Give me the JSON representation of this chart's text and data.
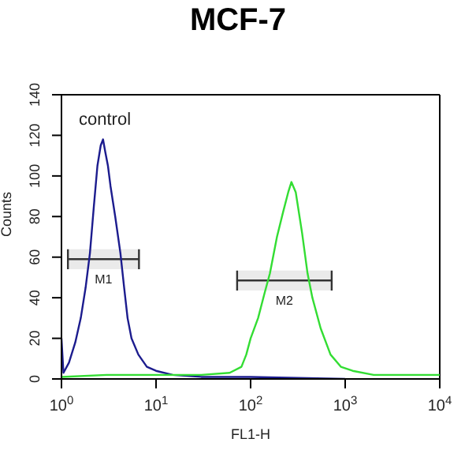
{
  "chart_data": {
    "type": "line",
    "title": "MCF-7",
    "xlabel": "FL1-H",
    "ylabel": "Counts",
    "log": "x",
    "xlim": [
      1,
      10000
    ],
    "xticks": [
      {
        "value": 1,
        "label": "10$^{0}$"
      },
      {
        "value": 10,
        "label": "10$^{1}$"
      },
      {
        "value": 100,
        "label": "10$^{2}$"
      },
      {
        "value": 1000,
        "label": "10$^{3}$"
      },
      {
        "value": 10000,
        "label": "10$^{4}$"
      }
    ],
    "ylim": [
      0,
      140
    ],
    "yticks": [
      0,
      20,
      40,
      60,
      80,
      100,
      120,
      140
    ],
    "grid": false,
    "legend": false,
    "marker": "none",
    "line_style": "solid",
    "series": [
      {
        "color": "#1c1c8e",
        "x": [
          1,
          1.05,
          1.2,
          1.4,
          1.6,
          1.8,
          2,
          2.2,
          2.4,
          2.6,
          2.75,
          2.9,
          3.1,
          3.3,
          3.7,
          4.2,
          4.6,
          5,
          5.5,
          6.5,
          8,
          10,
          15,
          30,
          100,
          1000
        ],
        "values": [
          20,
          3,
          8,
          18,
          30,
          45,
          62,
          85,
          105,
          115,
          118,
          112,
          105,
          95,
          80,
          62,
          45,
          30,
          20,
          12,
          6,
          4,
          2,
          1,
          1,
          0
        ]
      },
      {
        "color": "#33dd33",
        "x": [
          1,
          3,
          10,
          30,
          60,
          80,
          90,
          100,
          120,
          140,
          160,
          190,
          220,
          250,
          270,
          300,
          350,
          400,
          450,
          550,
          700,
          900,
          1200,
          2000,
          5000,
          10000
        ],
        "values": [
          1,
          2,
          2,
          2,
          3,
          6,
          12,
          20,
          30,
          42,
          52,
          70,
          82,
          92,
          97,
          92,
          72,
          52,
          40,
          25,
          12,
          6,
          4,
          2,
          2,
          2
        ]
      }
    ],
    "annotations": [
      "control"
    ],
    "bands": [
      {
        "axis": "x",
        "from": 1.17,
        "to": 6.6,
        "label": "M1",
        "color": "#333333"
      },
      {
        "axis": "x",
        "from": 72,
        "to": 720,
        "label": "M2",
        "color": "#333333"
      }
    ]
  }
}
